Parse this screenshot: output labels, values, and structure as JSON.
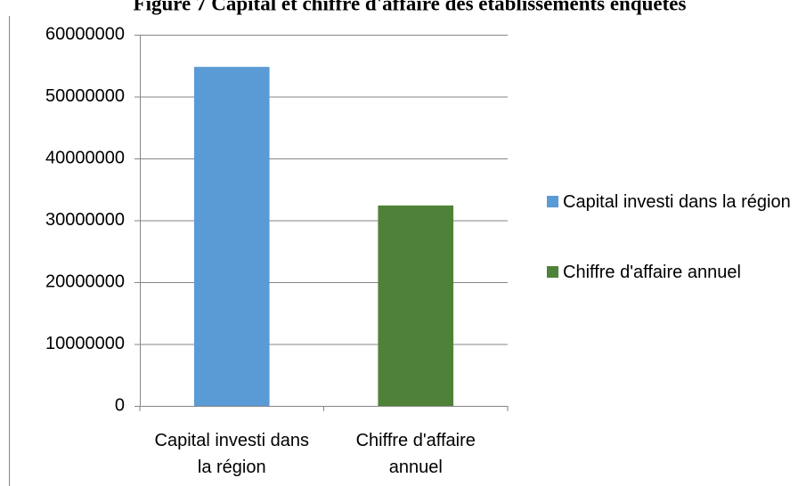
{
  "chart_data": {
    "type": "bar",
    "title": "Figure 7 Capital et chiffre d'affaire des établissements enquêtés",
    "categories": [
      "Capital investi dans la région",
      "Chiffre d'affaire annuel"
    ],
    "values": [
      54800000,
      32400000
    ],
    "colors": [
      "#5b9bd5",
      "#4f8238"
    ],
    "ylim": [
      0,
      60000000
    ],
    "yticks": [
      0,
      10000000,
      20000000,
      30000000,
      40000000,
      50000000,
      60000000
    ],
    "grid": true,
    "legend": "right"
  }
}
